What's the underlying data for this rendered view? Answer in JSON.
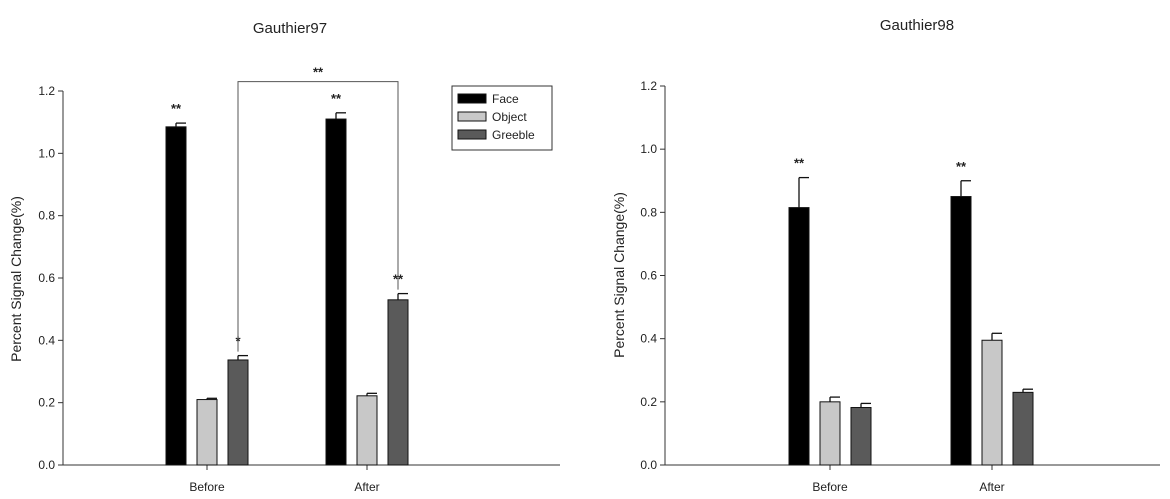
{
  "chart_data": [
    {
      "type": "bar",
      "title": "Gauthier97",
      "ylabel": "Percent Signal Change(%)",
      "xlabel": "",
      "categories": [
        "Before",
        "After"
      ],
      "ylim": [
        0,
        1.2
      ],
      "yticks": [
        "0.0",
        "0.2",
        "0.4",
        "0.6",
        "0.8",
        "1.0",
        "1.2"
      ],
      "legend_position": "top-right",
      "series": [
        {
          "name": "Face",
          "color": "#000000",
          "values": [
            1.085,
            1.11
          ],
          "errors": [
            0.012,
            0.02
          ]
        },
        {
          "name": "Object",
          "color": "#c8c8c8",
          "values": [
            0.21,
            0.222
          ],
          "errors": [
            0.004,
            0.008
          ]
        },
        {
          "name": "Greeble",
          "color": "#5a5a5a",
          "values": [
            0.337,
            0.53
          ],
          "errors": [
            0.014,
            0.02
          ]
        }
      ],
      "significance": [
        {
          "category": 0,
          "series": 0,
          "label": "**"
        },
        {
          "category": 0,
          "series": 2,
          "label": "*"
        },
        {
          "category": 1,
          "series": 0,
          "label": "**"
        },
        {
          "category": 1,
          "series": 2,
          "label": "**"
        }
      ],
      "bracket": {
        "from": {
          "category": 0,
          "series": 2
        },
        "to": {
          "category": 1,
          "series": 2
        },
        "level": 1.23,
        "label": "**"
      }
    },
    {
      "type": "bar",
      "title": "Gauthier98",
      "ylabel": "Percent Signal Change(%)",
      "xlabel": "",
      "categories": [
        "Before",
        "After"
      ],
      "ylim": [
        0,
        1.2
      ],
      "yticks": [
        "0.0",
        "0.2",
        "0.4",
        "0.6",
        "0.8",
        "1.0",
        "1.2"
      ],
      "series": [
        {
          "name": "Face",
          "color": "#000000",
          "values": [
            0.815,
            0.85
          ],
          "errors": [
            0.095,
            0.05
          ]
        },
        {
          "name": "Object",
          "color": "#c8c8c8",
          "values": [
            0.2,
            0.395
          ],
          "errors": [
            0.015,
            0.022
          ]
        },
        {
          "name": "Greeble",
          "color": "#5a5a5a",
          "values": [
            0.182,
            0.23
          ],
          "errors": [
            0.013,
            0.01
          ]
        }
      ],
      "significance": [
        {
          "category": 0,
          "series": 0,
          "label": "**"
        },
        {
          "category": 1,
          "series": 0,
          "label": "**"
        }
      ]
    }
  ]
}
